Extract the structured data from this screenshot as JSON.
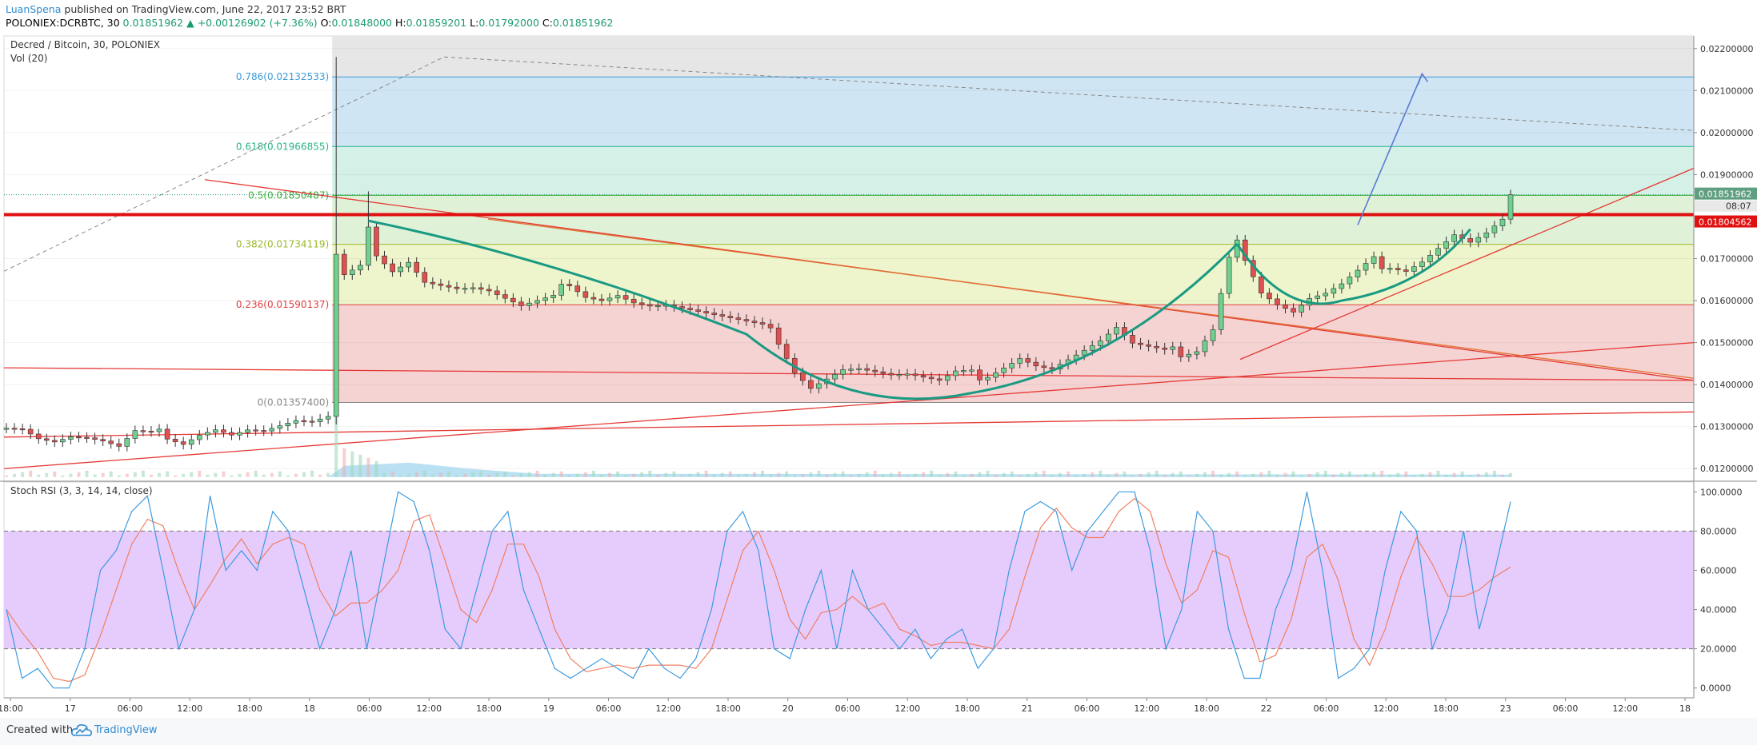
{
  "header": {
    "author": "LuanSpena",
    "published": "published on TradingView.com, June 22, 2017 23:52 BRT",
    "symbol_line": "POLONIEX:DCRBTC, 30",
    "last": "0.01851962",
    "change_arrow": "▲",
    "change": "+0.00126902 (+7.36%)",
    "o_label": "O:",
    "o": "0.01848000",
    "h_label": "H:",
    "h": "0.01859201",
    "l_label": "L:",
    "l": "0.01792000",
    "c_label": "C:",
    "c": "0.01851962"
  },
  "panes": {
    "main_title": "Decred / Bitcoin, 30, POLONIEX",
    "vol_label": "Vol (20)",
    "rsi_title": "Stoch RSI (3, 3, 14, 14, close)"
  },
  "chart_data": [
    {
      "type": "candlestick",
      "title": "Decred / Bitcoin, 30, POLONIEX",
      "y_ticks": [
        "0.02200000",
        "0.02100000",
        "0.02000000",
        "0.01900000",
        "0.01700000",
        "0.01600000",
        "0.01500000",
        "0.01400000",
        "0.01300000",
        "0.01200000"
      ],
      "ylim": [
        0.0117,
        0.0223
      ],
      "x_ticks": [
        "18:00",
        "17",
        "06:00",
        "12:00",
        "18:00",
        "18",
        "06:00",
        "12:00",
        "18:00",
        "19",
        "06:00",
        "12:00",
        "18:00",
        "20",
        "06:00",
        "12:00",
        "18:00",
        "21",
        "06:00",
        "12:00",
        "18:00",
        "22",
        "06:00",
        "12:00",
        "18:00",
        "23",
        "06:00",
        "12:00",
        "18"
      ],
      "price_label": "0.01851962",
      "countdown_label": "08:07",
      "resistance_label": "0.01804562",
      "resistance_value": 0.01804562,
      "fib_levels": [
        {
          "label": "0.786(0.02132533)",
          "value": 0.02132533,
          "color": "#3d9bd9"
        },
        {
          "label": "0.618(0.01966855)",
          "value": 0.01966855,
          "color": "#29b48a"
        },
        {
          "label": "0.5(0.01850487)",
          "value": 0.01850487,
          "color": "#3aae3a"
        },
        {
          "label": "0.382(0.01734119)",
          "value": 0.01734119,
          "color": "#9ab82a"
        },
        {
          "label": "0.236(0.01590137)",
          "value": 0.01590137,
          "color": "#e04040"
        },
        {
          "label": "0(0.01357400)",
          "value": 0.013574,
          "color": "#888888"
        }
      ],
      "close_path": [
        [
          0,
          0.01305
        ],
        [
          2,
          0.013
        ],
        [
          4,
          0.01275
        ],
        [
          6,
          0.01265
        ],
        [
          8,
          0.01275
        ],
        [
          10,
          0.0127
        ],
        [
          12,
          0.0126
        ],
        [
          14,
          0.01245
        ],
        [
          16,
          0.0128
        ],
        [
          18,
          0.01275
        ],
        [
          20,
          0.01285
        ],
        [
          22,
          0.0127
        ],
        [
          24,
          0.0129
        ],
        [
          26,
          0.013
        ],
        [
          28,
          0.01285
        ],
        [
          30,
          0.01295
        ],
        [
          32,
          0.0129
        ],
        [
          34,
          0.013
        ],
        [
          36,
          0.0131
        ],
        [
          38,
          0.01305
        ],
        [
          40,
          0.01315
        ],
        [
          41,
          0.017
        ],
        [
          42,
          0.0165
        ],
        [
          44,
          0.0167
        ],
        [
          45,
          0.0179
        ],
        [
          46,
          0.0172
        ],
        [
          48,
          0.0168
        ],
        [
          50,
          0.017
        ],
        [
          52,
          0.0165
        ],
        [
          54,
          0.0164
        ],
        [
          56,
          0.0163
        ],
        [
          58,
          0.0163
        ],
        [
          60,
          0.0162
        ],
        [
          62,
          0.016
        ],
        [
          64,
          0.0158
        ],
        [
          66,
          0.0159
        ],
        [
          68,
          0.016
        ],
        [
          70,
          0.0165
        ],
        [
          72,
          0.0162
        ],
        [
          74,
          0.0161
        ],
        [
          76,
          0.0162
        ],
        [
          78,
          0.016
        ],
        [
          80,
          0.0159
        ],
        [
          82,
          0.0159
        ],
        [
          84,
          0.0158
        ],
        [
          86,
          0.0157
        ],
        [
          88,
          0.0156
        ],
        [
          90,
          0.0155
        ],
        [
          92,
          0.0154
        ],
        [
          94,
          0.0153
        ],
        [
          96,
          0.0151
        ],
        [
          98,
          0.0144
        ],
        [
          100,
          0.014
        ],
        [
          102,
          0.0142
        ],
        [
          104,
          0.0144
        ],
        [
          106,
          0.0144
        ],
        [
          108,
          0.0143
        ],
        [
          110,
          0.0142
        ],
        [
          112,
          0.0142
        ],
        [
          114,
          0.0141
        ],
        [
          116,
          0.014
        ],
        [
          118,
          0.0142
        ],
        [
          120,
          0.0142
        ],
        [
          122,
          0.0143
        ],
        [
          124,
          0.0145
        ],
        [
          126,
          0.0147
        ],
        [
          128,
          0.0145
        ],
        [
          130,
          0.0144
        ],
        [
          132,
          0.0146
        ],
        [
          134,
          0.0148
        ],
        [
          136,
          0.015
        ],
        [
          138,
          0.0153
        ],
        [
          140,
          0.0149
        ],
        [
          142,
          0.0148
        ],
        [
          144,
          0.0147
        ],
        [
          146,
          0.0148
        ],
        [
          148,
          0.0149
        ],
        [
          150,
          0.0154
        ],
        [
          152,
          0.0171
        ],
        [
          153,
          0.0175
        ],
        [
          154,
          0.017
        ],
        [
          156,
          0.0162
        ],
        [
          158,
          0.0159
        ],
        [
          160,
          0.0157
        ],
        [
          162,
          0.016
        ],
        [
          164,
          0.0161
        ],
        [
          166,
          0.0163
        ],
        [
          168,
          0.0166
        ],
        [
          170,
          0.0169
        ],
        [
          172,
          0.0169
        ],
        [
          174,
          0.0168
        ],
        [
          176,
          0.017
        ],
        [
          178,
          0.0173
        ],
        [
          180,
          0.0176
        ],
        [
          182,
          0.0174
        ],
        [
          184,
          0.0176
        ],
        [
          186,
          0.0179
        ],
        [
          187,
          0.01851962
        ]
      ],
      "stoch_rsi": {
        "ylim": [
          -5,
          105
        ],
        "y_ticks": [
          "100.0000",
          "80.0000",
          "60.0000",
          "40.0000",
          "20.0000",
          "0.0000"
        ],
        "bands": [
          20,
          80
        ],
        "k_color": "#3d9bdf",
        "d_color": "#f08060",
        "k": [
          40,
          5,
          10,
          0,
          0,
          20,
          60,
          70,
          90,
          98,
          60,
          20,
          40,
          98,
          60,
          70,
          60,
          90,
          80,
          50,
          20,
          40,
          70,
          20,
          60,
          100,
          95,
          70,
          30,
          20,
          50,
          80,
          90,
          50,
          30,
          10,
          5,
          10,
          15,
          10,
          5,
          20,
          10,
          5,
          15,
          40,
          80,
          90,
          70,
          20,
          15,
          40,
          60,
          20,
          60,
          40,
          30,
          20,
          30,
          15,
          25,
          30,
          10,
          20,
          60,
          90,
          95,
          90,
          60,
          80,
          90,
          100,
          100,
          70,
          20,
          40,
          90,
          80,
          30,
          5,
          5,
          40,
          60,
          100,
          60,
          5,
          10,
          20,
          60,
          90,
          80,
          20,
          40,
          80,
          30,
          60,
          95
        ]
      }
    }
  ],
  "footer": {
    "created_with": "Created with",
    "brand": "TradingView"
  }
}
